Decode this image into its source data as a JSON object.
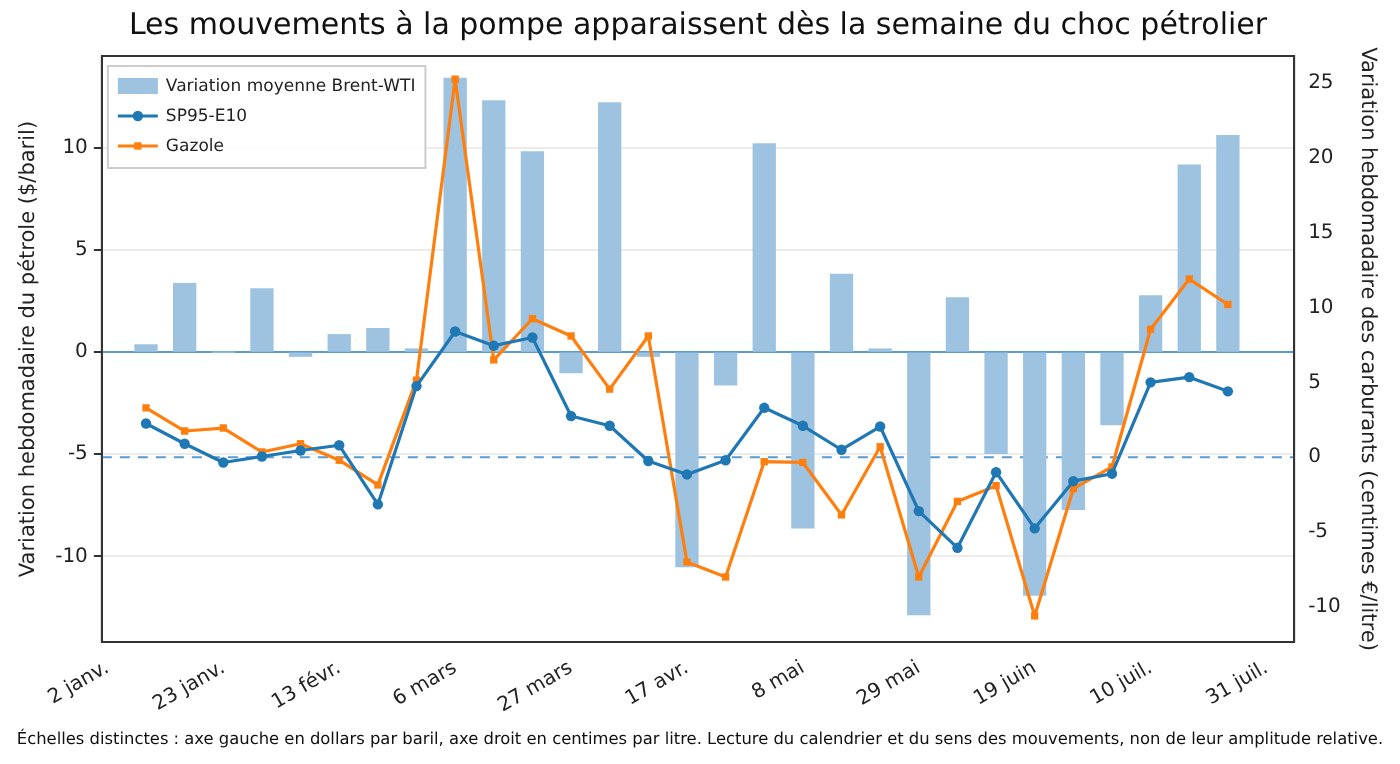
{
  "chart_data": {
    "type": "line",
    "title": "Les mouvements à la pompe apparaissent dès la semaine du choc pétrolier",
    "ylabel": "Variation hebdomadaire du pétrole ($/baril)",
    "y2label": "Variation hebdomadaire des carburants (centimes €/litre)",
    "annotations": [
      "Échelles distinctes : axe gauche en dollars par baril, axe droit en centimes par litre. Lecture du calendrier et du sens des mouvements, non de leur amplitude relative."
    ],
    "x": [
      "--01-09",
      "--01-16",
      "--01-23",
      "--01-30",
      "--02-06",
      "--02-13",
      "--02-20",
      "--02-27",
      "--03-06",
      "--03-13",
      "--03-20",
      "--03-27",
      "--04-03",
      "--04-10",
      "--04-17",
      "--04-24",
      "--05-01",
      "--05-08",
      "--05-15",
      "--05-22",
      "--05-29",
      "--06-05",
      "--06-12",
      "--06-19",
      "--06-26",
      "--07-03",
      "--07-10",
      "--07-17",
      "--07-24"
    ],
    "series": [
      {
        "name": "Variation moyenne Brent-WTI",
        "type": "bar",
        "axis": "y",
        "color": "#9ec3e0",
        "values": [
          0.35,
          3.35,
          0,
          3.1,
          -0.2,
          0.85,
          1.15,
          0.15,
          13.4,
          12.3,
          9.8,
          -1.0,
          12.2,
          -0.2,
          -10.5,
          -1.6,
          10.2,
          -8.6,
          3.8,
          0.15,
          -12.85,
          2.65,
          -4.95,
          -11.9,
          -7.7,
          -3.55,
          2.75,
          9.15,
          10.6
        ]
      },
      {
        "name": "SP95-E10",
        "axis": "y2",
        "color": "#1f77b4",
        "marker": "circle",
        "values": [
          2.25,
          0.9,
          -0.35,
          0.05,
          0.45,
          0.8,
          -3.15,
          4.75,
          8.4,
          7.45,
          8.0,
          2.75,
          2.1,
          -0.25,
          -1.15,
          -0.2,
          3.3,
          2.1,
          0.5,
          2.05,
          -3.6,
          -6.05,
          -1.0,
          -4.75,
          -1.6,
          -1.1,
          5.0,
          5.35,
          4.4
        ]
      },
      {
        "name": "Gazole",
        "axis": "y2",
        "color": "#ff7f0e",
        "marker": "square",
        "values": [
          3.3,
          1.75,
          1.95,
          0.35,
          0.9,
          -0.2,
          -1.85,
          5.15,
          25.25,
          6.5,
          9.25,
          8.1,
          4.55,
          8.1,
          -7.0,
          -8.0,
          -0.3,
          -0.35,
          -3.85,
          0.7,
          -8.0,
          -2.95,
          -1.9,
          -10.6,
          -2.1,
          -0.65,
          8.55,
          11.9,
          10.2
        ]
      }
    ],
    "xlim": [
      "--01-01",
      "--08-05"
    ],
    "xticks": [
      {
        "value": "--01-02",
        "label": "2 janv."
      },
      {
        "value": "--01-23",
        "label": "23 janv."
      },
      {
        "value": "--02-13",
        "label": "13 févr."
      },
      {
        "value": "--03-06",
        "label": "6 mars"
      },
      {
        "value": "--03-27",
        "label": "27 mars"
      },
      {
        "value": "--04-17",
        "label": "17 avr."
      },
      {
        "value": "--05-08",
        "label": "8 mai"
      },
      {
        "value": "--05-29",
        "label": "29 mai"
      },
      {
        "value": "--06-19",
        "label": "19 juin"
      },
      {
        "value": "--07-10",
        "label": "10 juil."
      },
      {
        "value": "--07-31",
        "label": "31 juil."
      }
    ],
    "ylim": [
      -14.2,
      14.5
    ],
    "yticks": [
      -10,
      -5,
      0,
      5,
      10
    ],
    "y2lim": [
      -12.35,
      26.8
    ],
    "y2ticks": [
      -10,
      -5,
      0,
      5,
      10,
      15,
      20,
      25
    ],
    "ref_lines": [
      {
        "axis": "y",
        "value": 0,
        "color": "#5a9bd0",
        "line_style": "solid"
      },
      {
        "axis": "y2",
        "value": 0,
        "color": "#5a9bd0",
        "line_style": "dashed"
      }
    ],
    "grid": "y",
    "legend": "top left"
  }
}
